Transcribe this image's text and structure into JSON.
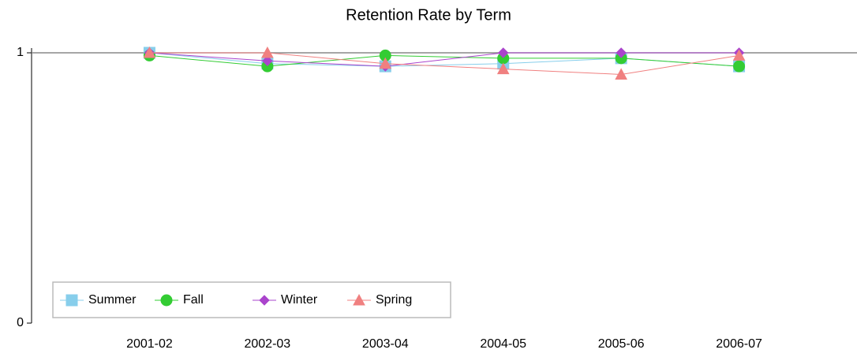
{
  "chart_data": {
    "type": "line",
    "title": "Retention Rate by Term",
    "categories": [
      "2001-02",
      "2002-03",
      "2003-04",
      "2004-05",
      "2005-06",
      "2006-07"
    ],
    "series": [
      {
        "name": "Summer",
        "color": "#87ceeb",
        "marker": "square",
        "values": [
          1.0,
          0.96,
          0.95,
          0.96,
          0.98,
          0.95
        ]
      },
      {
        "name": "Fall",
        "color": "#33cc33",
        "marker": "circle",
        "values": [
          0.99,
          0.95,
          0.99,
          0.98,
          0.98,
          0.95
        ]
      },
      {
        "name": "Winter",
        "color": "#aa44cc",
        "marker": "diamond",
        "values": [
          1.0,
          0.97,
          0.95,
          1.0,
          1.0,
          1.0
        ]
      },
      {
        "name": "Spring",
        "color": "#f08080",
        "marker": "triangle",
        "values": [
          1.0,
          1.0,
          0.96,
          0.94,
          0.92,
          0.99
        ]
      }
    ],
    "ylim": [
      0,
      1
    ],
    "yticks": [
      0,
      1
    ],
    "grid": true,
    "legend": "lower left"
  }
}
